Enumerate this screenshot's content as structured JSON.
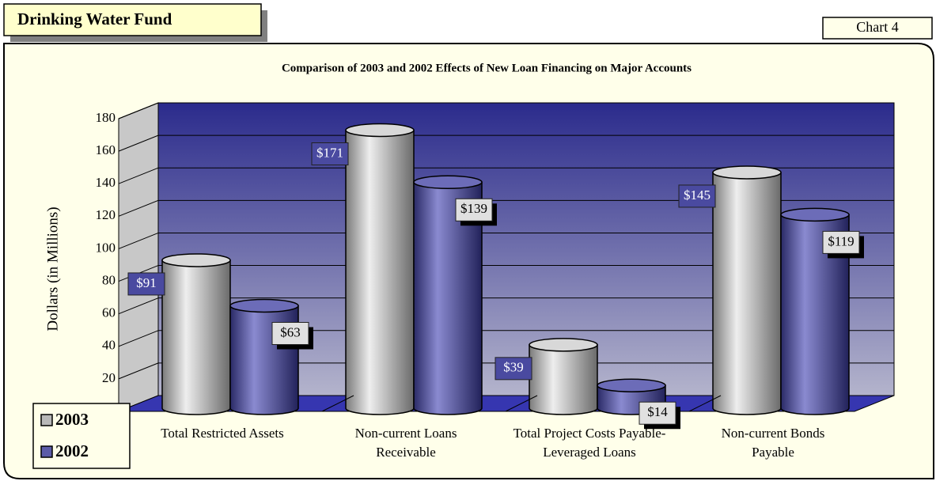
{
  "header": {
    "title": "Drinking Water Fund",
    "chart_label": "Chart 4"
  },
  "chart_data": {
    "type": "bar3d",
    "title": "Comparison of  2003 and 2002  Effects of New Loan Financing on Major Accounts",
    "y_label": "Dollars (in Millions)",
    "categories": [
      "Total Restricted Assets",
      "Non-current Loans Receivable",
      "Total Project Costs Payable-Leveraged Loans",
      "Non-current Bonds Payable"
    ],
    "series": [
      {
        "name": "2003",
        "color": "#b8b8b8",
        "values": [
          91,
          171,
          39,
          145
        ],
        "value_labels": [
          "$91",
          "$171",
          "$39",
          "$145"
        ]
      },
      {
        "name": "2002",
        "color": "#5c5ca8",
        "values": [
          63,
          139,
          14,
          119
        ],
        "value_labels": [
          "$63",
          "$139",
          "$14",
          "$119"
        ]
      }
    ],
    "ylim": [
      0,
      180
    ],
    "yticks": [
      20,
      40,
      60,
      80,
      100,
      120,
      140,
      160,
      180
    ],
    "grid": true,
    "legend": "bottom-left"
  }
}
